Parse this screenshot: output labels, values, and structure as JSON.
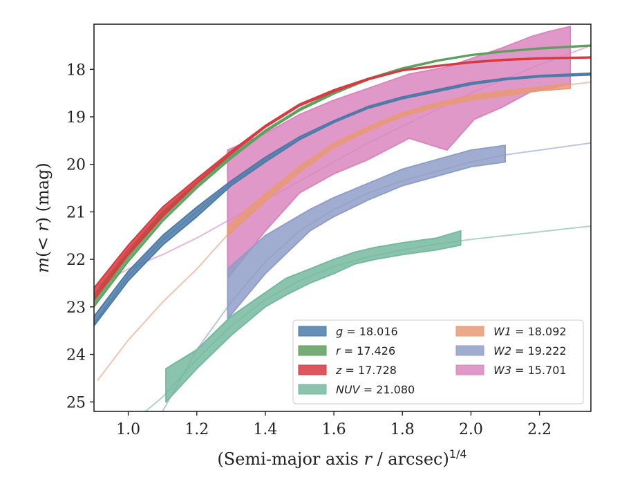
{
  "chart_data": {
    "type": "line",
    "xlabel": "(Semi-major axis r / arcsec)^{1/4}",
    "ylabel": "m(< r) (mag)",
    "xlim": [
      0.9,
      2.35
    ],
    "ylim": [
      25.2,
      17.05
    ],
    "y_inverted": true,
    "grid": false,
    "legend_location": "lower-right",
    "xticks": [
      "1.0",
      "1.2",
      "1.4",
      "1.6",
      "1.8",
      "2.0",
      "2.2"
    ],
    "yticks": [
      "18",
      "19",
      "20",
      "21",
      "22",
      "23",
      "24",
      "25"
    ],
    "series": [
      {
        "name": "g",
        "legend": "g = 18.016",
        "color": "#4c7aa8",
        "model": [
          [
            0.9,
            23.35
          ],
          [
            1.0,
            22.35
          ],
          [
            1.1,
            21.6
          ],
          [
            1.2,
            21.0
          ],
          [
            1.3,
            20.4
          ],
          [
            1.4,
            19.9
          ],
          [
            1.5,
            19.45
          ],
          [
            1.6,
            19.1
          ],
          [
            1.7,
            18.8
          ],
          [
            1.8,
            18.6
          ],
          [
            1.9,
            18.45
          ],
          [
            2.0,
            18.3
          ],
          [
            2.1,
            18.2
          ],
          [
            2.2,
            18.15
          ],
          [
            2.35,
            18.1
          ]
        ],
        "band": [
          [
            0.9,
            23.2,
            23.4
          ],
          [
            1.0,
            22.25,
            22.45
          ],
          [
            1.1,
            21.5,
            21.7
          ],
          [
            1.2,
            20.9,
            21.1
          ],
          [
            1.3,
            20.35,
            20.45
          ],
          [
            1.4,
            19.85,
            19.95
          ],
          [
            1.5,
            19.42,
            19.48
          ],
          [
            1.6,
            19.08,
            19.12
          ],
          [
            1.7,
            18.78,
            18.82
          ],
          [
            1.8,
            18.58,
            18.62
          ],
          [
            1.9,
            18.43,
            18.47
          ],
          [
            2.0,
            18.28,
            18.32
          ],
          [
            2.1,
            18.19,
            18.22
          ],
          [
            2.2,
            18.13,
            18.16
          ],
          [
            2.35,
            18.08,
            18.12
          ]
        ]
      },
      {
        "name": "r",
        "legend": "r = 17.426",
        "color": "#5e9e5e",
        "model": [
          [
            0.9,
            22.9
          ],
          [
            1.0,
            21.95
          ],
          [
            1.1,
            21.1
          ],
          [
            1.2,
            20.45
          ],
          [
            1.3,
            19.85
          ],
          [
            1.4,
            19.3
          ],
          [
            1.5,
            18.85
          ],
          [
            1.6,
            18.5
          ],
          [
            1.7,
            18.2
          ],
          [
            1.8,
            17.98
          ],
          [
            1.9,
            17.82
          ],
          [
            2.0,
            17.7
          ],
          [
            2.1,
            17.62
          ],
          [
            2.2,
            17.56
          ],
          [
            2.35,
            17.5
          ]
        ],
        "band": [
          [
            0.9,
            22.75,
            23.0
          ],
          [
            1.0,
            21.85,
            22.05
          ],
          [
            1.1,
            21.0,
            21.2
          ],
          [
            1.2,
            20.4,
            20.5
          ],
          [
            1.3,
            19.82,
            19.88
          ],
          [
            1.4,
            19.28,
            19.32
          ],
          [
            1.5,
            18.83,
            18.87
          ],
          [
            1.6,
            18.48,
            18.52
          ],
          [
            1.7,
            18.19,
            18.22
          ],
          [
            1.8,
            17.97,
            18.0
          ],
          [
            1.9,
            17.81,
            17.83
          ],
          [
            2.0,
            17.69,
            17.71
          ],
          [
            2.1,
            17.61,
            17.63
          ],
          [
            2.2,
            17.55,
            17.57
          ],
          [
            2.35,
            17.49,
            17.51
          ]
        ]
      },
      {
        "name": "z",
        "legend": "z = 17.728",
        "color": "#d6393f",
        "model": [
          [
            0.9,
            22.75
          ],
          [
            1.0,
            21.8
          ],
          [
            1.1,
            21.0
          ],
          [
            1.2,
            20.35
          ],
          [
            1.3,
            19.75
          ],
          [
            1.4,
            19.2
          ],
          [
            1.5,
            18.75
          ],
          [
            1.6,
            18.45
          ],
          [
            1.7,
            18.2
          ],
          [
            1.8,
            18.02
          ],
          [
            1.9,
            17.93
          ],
          [
            2.0,
            17.85
          ],
          [
            2.1,
            17.8
          ],
          [
            2.2,
            17.77
          ],
          [
            2.35,
            17.75
          ]
        ],
        "band": [
          [
            0.9,
            22.6,
            22.85
          ],
          [
            1.0,
            21.7,
            21.9
          ],
          [
            1.1,
            20.9,
            21.1
          ],
          [
            1.2,
            20.3,
            20.4
          ],
          [
            1.3,
            19.72,
            19.78
          ],
          [
            1.4,
            19.18,
            19.22
          ],
          [
            1.5,
            18.73,
            18.77
          ],
          [
            1.6,
            18.43,
            18.47
          ],
          [
            1.7,
            18.19,
            18.22
          ],
          [
            1.8,
            18.01,
            18.03
          ],
          [
            1.9,
            17.92,
            17.94
          ],
          [
            2.0,
            17.84,
            17.86
          ],
          [
            2.1,
            17.79,
            17.81
          ],
          [
            2.2,
            17.76,
            17.78
          ],
          [
            2.35,
            17.74,
            17.76
          ]
        ]
      },
      {
        "name": "NUV",
        "legend": "NUV = 21.080",
        "color": "#76b8a0",
        "model": [
          [
            1.05,
            25.2
          ],
          [
            1.1,
            24.9
          ],
          [
            1.2,
            24.1
          ],
          [
            1.3,
            23.4
          ],
          [
            1.4,
            22.85
          ],
          [
            1.5,
            22.45
          ],
          [
            1.6,
            22.15
          ],
          [
            1.7,
            21.95
          ],
          [
            1.8,
            21.8
          ],
          [
            1.9,
            21.68
          ],
          [
            2.0,
            21.58
          ],
          [
            2.1,
            21.5
          ],
          [
            2.2,
            21.42
          ],
          [
            2.35,
            21.3
          ]
        ],
        "band": [
          [
            1.11,
            24.3,
            25.0
          ],
          [
            1.2,
            23.9,
            24.3
          ],
          [
            1.3,
            23.2,
            23.6
          ],
          [
            1.4,
            22.7,
            23.0
          ],
          [
            1.46,
            22.4,
            22.75
          ],
          [
            1.53,
            22.2,
            22.5
          ],
          [
            1.6,
            22.0,
            22.3
          ],
          [
            1.66,
            21.85,
            22.1
          ],
          [
            1.72,
            21.75,
            22.0
          ],
          [
            1.8,
            21.65,
            21.9
          ],
          [
            1.9,
            21.55,
            21.8
          ],
          [
            1.97,
            21.4,
            21.7
          ]
        ]
      },
      {
        "name": "W1",
        "legend": "W1 = 18.092",
        "color": "#e89a78",
        "model": [
          [
            0.91,
            24.55
          ],
          [
            1.0,
            23.7
          ],
          [
            1.1,
            22.9
          ],
          [
            1.2,
            22.2
          ],
          [
            1.3,
            21.4
          ],
          [
            1.4,
            20.7
          ],
          [
            1.5,
            20.1
          ],
          [
            1.6,
            19.6
          ],
          [
            1.7,
            19.25
          ],
          [
            1.8,
            18.95
          ],
          [
            1.9,
            18.75
          ],
          [
            2.0,
            18.6
          ],
          [
            2.1,
            18.5
          ],
          [
            2.2,
            18.4
          ],
          [
            2.35,
            18.27
          ]
        ],
        "band": [
          [
            1.29,
            21.3,
            21.5
          ],
          [
            1.4,
            20.62,
            20.78
          ],
          [
            1.5,
            20.04,
            20.16
          ],
          [
            1.6,
            19.55,
            19.65
          ],
          [
            1.7,
            19.21,
            19.29
          ],
          [
            1.8,
            18.91,
            18.99
          ],
          [
            1.9,
            18.71,
            18.79
          ],
          [
            2.0,
            18.55,
            18.65
          ],
          [
            2.1,
            18.45,
            18.55
          ],
          [
            2.2,
            18.37,
            18.45
          ],
          [
            2.29,
            18.3,
            18.4
          ]
        ]
      },
      {
        "name": "W2",
        "legend": "W2 = 19.222",
        "color": "#8f9ec8",
        "model": [
          [
            1.1,
            25.2
          ],
          [
            1.2,
            23.9
          ],
          [
            1.3,
            22.9
          ],
          [
            1.4,
            22.05
          ],
          [
            1.5,
            21.4
          ],
          [
            1.6,
            20.95
          ],
          [
            1.7,
            20.6
          ],
          [
            1.8,
            20.35
          ],
          [
            1.9,
            20.15
          ],
          [
            2.0,
            19.95
          ],
          [
            2.1,
            19.8
          ],
          [
            2.2,
            19.7
          ],
          [
            2.35,
            19.55
          ]
        ],
        "band": [
          [
            1.29,
            22.2,
            23.25
          ],
          [
            1.4,
            21.5,
            22.3
          ],
          [
            1.53,
            20.95,
            21.4
          ],
          [
            1.6,
            20.7,
            21.1
          ],
          [
            1.7,
            20.4,
            20.75
          ],
          [
            1.8,
            20.1,
            20.45
          ],
          [
            1.9,
            19.9,
            20.25
          ],
          [
            2.0,
            19.7,
            20.05
          ],
          [
            2.1,
            19.6,
            19.95
          ]
        ]
      },
      {
        "name": "W3",
        "legend": "W3 = 15.701",
        "color": "#d986bd",
        "model": [
          [
            0.9,
            22.6
          ],
          [
            1.0,
            22.2
          ],
          [
            1.1,
            21.9
          ],
          [
            1.2,
            21.55
          ],
          [
            1.3,
            21.15
          ],
          [
            1.4,
            20.75
          ],
          [
            1.5,
            20.35
          ],
          [
            1.6,
            19.95
          ],
          [
            1.7,
            19.55
          ],
          [
            1.8,
            19.2
          ],
          [
            1.9,
            18.85
          ],
          [
            2.0,
            18.5
          ],
          [
            2.1,
            18.2
          ],
          [
            2.2,
            17.9
          ],
          [
            2.35,
            17.5
          ]
        ],
        "band": [
          [
            1.29,
            19.7,
            22.4
          ],
          [
            1.4,
            19.35,
            21.4
          ],
          [
            1.5,
            18.95,
            20.6
          ],
          [
            1.6,
            18.65,
            20.2
          ],
          [
            1.7,
            18.4,
            19.9
          ],
          [
            1.82,
            18.1,
            19.45
          ],
          [
            1.93,
            17.95,
            19.7
          ],
          [
            2.01,
            17.75,
            19.05
          ],
          [
            2.09,
            17.55,
            18.8
          ],
          [
            2.18,
            17.3,
            18.45
          ],
          [
            2.23,
            17.2,
            18.4
          ],
          [
            2.29,
            17.1,
            18.3
          ]
        ]
      }
    ]
  }
}
